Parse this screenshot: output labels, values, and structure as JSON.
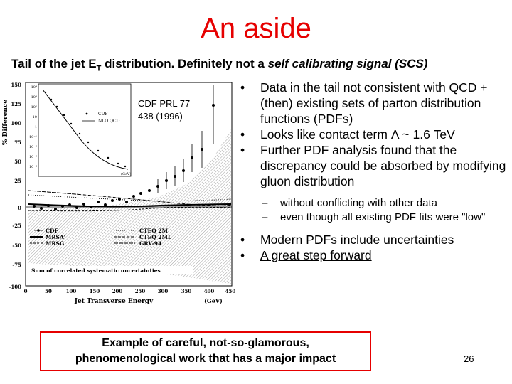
{
  "title": "An aside",
  "subtitle": {
    "part1": "Tail of the jet E",
    "sub": "T",
    "part2": " distribution.  Definitely not a ",
    "italic": "self calibrating signal (SCS)"
  },
  "figure": {
    "ref_line1": "CDF PRL 77",
    "ref_line2": "438 (1996)",
    "ylabel": "% Difference",
    "xlabel": "Jet Transverse Energy",
    "xunit": "(GeV)",
    "yticks": [
      "150",
      "125",
      "100",
      "75",
      "50",
      "25",
      "0",
      "-25",
      "-50",
      "-75",
      "-100"
    ],
    "xticks": [
      "0",
      "50",
      "100",
      "150",
      "200",
      "250",
      "300",
      "350",
      "400",
      "450"
    ],
    "legend_left": [
      "CDF",
      "MRSA'",
      "MRSG"
    ],
    "legend_right": [
      "CTEQ 2M",
      "CTEQ 2ML",
      "GRV-94"
    ],
    "syst_label": "Sum of correlated systematic uncertainties",
    "inset": {
      "legend": [
        "CDF",
        "NLO QCD"
      ],
      "xunit": "(GeV)",
      "yticks": [
        "10⁴",
        "10³",
        "10²",
        "10",
        "1",
        "10⁻¹",
        "10⁻²",
        "10⁻³",
        "10⁻⁴"
      ]
    }
  },
  "bullets": [
    "Data in the tail not consistent with QCD + (then) existing sets of parton distribution functions (PDFs)",
    "Looks like contact term Λ ~ 1.6 TeV",
    "Further PDF analysis found that the discrepancy could be absorbed by modifying gluon distribution"
  ],
  "sub_bullets": [
    "without conflicting with other data",
    "even though all existing PDF fits were \"low\""
  ],
  "bullets2": [
    "Modern PDFs include uncertainties",
    "A great step forward"
  ],
  "callout": {
    "line1": "Example of careful,  not-so-glamorous,",
    "line2": "phenomenological work that has a major impact"
  },
  "page_number": "26",
  "colors": {
    "title": "#e60000",
    "callout_border": "#e60000"
  }
}
